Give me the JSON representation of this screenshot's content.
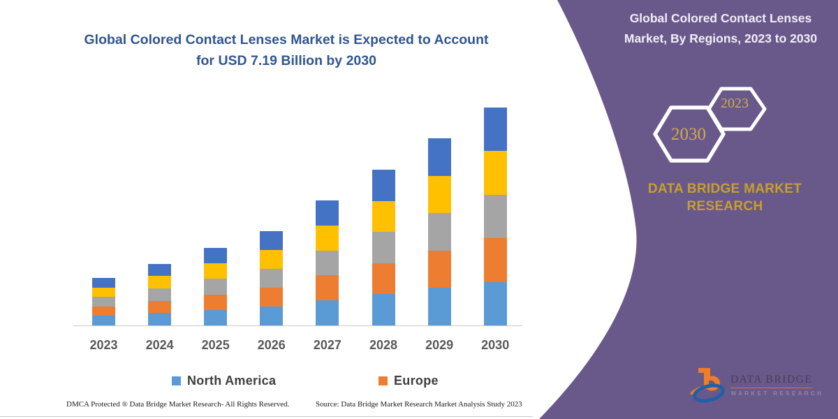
{
  "chart": {
    "title_line1": "Global Colored Contact Lenses Market is Expected to Account",
    "title_line2": "for USD 7.19 Billion by 2030"
  },
  "legend": {
    "items": [
      {
        "label": "North America",
        "color": "#5B9BD5"
      },
      {
        "label": "Europe",
        "color": "#ED7D31"
      }
    ]
  },
  "footer": {
    "dmca": "DMCA Protected ® Data Bridge Market Research-  All Rights Reserved.",
    "source": "Source: Data Bridge Market Research  Market Analysis Study 2023"
  },
  "right_panel": {
    "title_line1": "Global Colored Contact Lenses",
    "title_line2": "Market, By Regions, 2023 to 2030",
    "hexagon_left": "2030",
    "hexagon_right": "2023",
    "brand_line1": "DATA BRIDGE MARKET",
    "brand_line2": "RESEARCH",
    "background_color": "#69598B",
    "accent_gold": "#C7A02C"
  },
  "logo": {
    "name": "DATA BRIDGE",
    "tagline": "MARKET RESEARCH"
  },
  "chart_data": {
    "type": "bar",
    "stacked": true,
    "unit": "USD Billion",
    "categories": [
      "2023",
      "2024",
      "2025",
      "2026",
      "2027",
      "2028",
      "2029",
      "2030"
    ],
    "series": [
      {
        "name": "North America",
        "color": "#5B9BD5",
        "values": [
          0.314,
          0.408,
          0.512,
          0.622,
          0.824,
          1.028,
          1.236,
          1.438
        ]
      },
      {
        "name": "Europe",
        "color": "#ED7D31",
        "values": [
          0.314,
          0.408,
          0.512,
          0.622,
          0.824,
          1.028,
          1.236,
          1.438
        ]
      },
      {
        "name": "unlabeled-region-gray",
        "color": "#A5A5A5",
        "values": [
          0.314,
          0.408,
          0.512,
          0.622,
          0.824,
          1.028,
          1.236,
          1.438
        ]
      },
      {
        "name": "unlabeled-region-yellow",
        "color": "#FFC000",
        "values": [
          0.314,
          0.408,
          0.512,
          0.622,
          0.824,
          1.028,
          1.236,
          1.438
        ]
      },
      {
        "name": "unlabeled-region-darkblue",
        "color": "#4472C4",
        "values": [
          0.314,
          0.408,
          0.512,
          0.622,
          0.824,
          1.028,
          1.236,
          1.438
        ]
      }
    ],
    "totals": [
      1.57,
      2.04,
      2.56,
      3.11,
      4.12,
      5.14,
      6.18,
      7.19
    ],
    "highlight_value": "USD 7.19 Billion by 2030",
    "xlabel": "",
    "ylabel": "",
    "y_axis_visible": false,
    "gridlines": false,
    "legend_position": "bottom",
    "estimated": true
  }
}
